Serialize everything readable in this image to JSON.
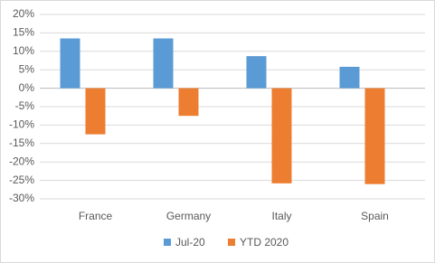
{
  "chart_data": {
    "type": "bar",
    "categories": [
      "France",
      "Germany",
      "Italy",
      "Spain"
    ],
    "series": [
      {
        "name": "Jul-20",
        "color": "#5b9bd5",
        "values": [
          13.5,
          13.5,
          8.7,
          5.8
        ]
      },
      {
        "name": "YTD 2020",
        "color": "#ed7d31",
        "values": [
          -12.5,
          -7.5,
          -25.8,
          -26
        ]
      }
    ],
    "ylim": [
      -30,
      20
    ],
    "yticks": [
      {
        "value": -30,
        "label": "-30%"
      },
      {
        "value": -25,
        "label": "-25%"
      },
      {
        "value": -20,
        "label": "-20%"
      },
      {
        "value": -15,
        "label": "-15%"
      },
      {
        "value": -10,
        "label": "-10%"
      },
      {
        "value": -5,
        "label": "-5%"
      },
      {
        "value": 0,
        "label": "0%"
      },
      {
        "value": 5,
        "label": "5%"
      },
      {
        "value": 10,
        "label": "10%"
      },
      {
        "value": 15,
        "label": "15%"
      },
      {
        "value": 20,
        "label": "20%"
      }
    ],
    "grid": true,
    "legend": "bottom"
  }
}
